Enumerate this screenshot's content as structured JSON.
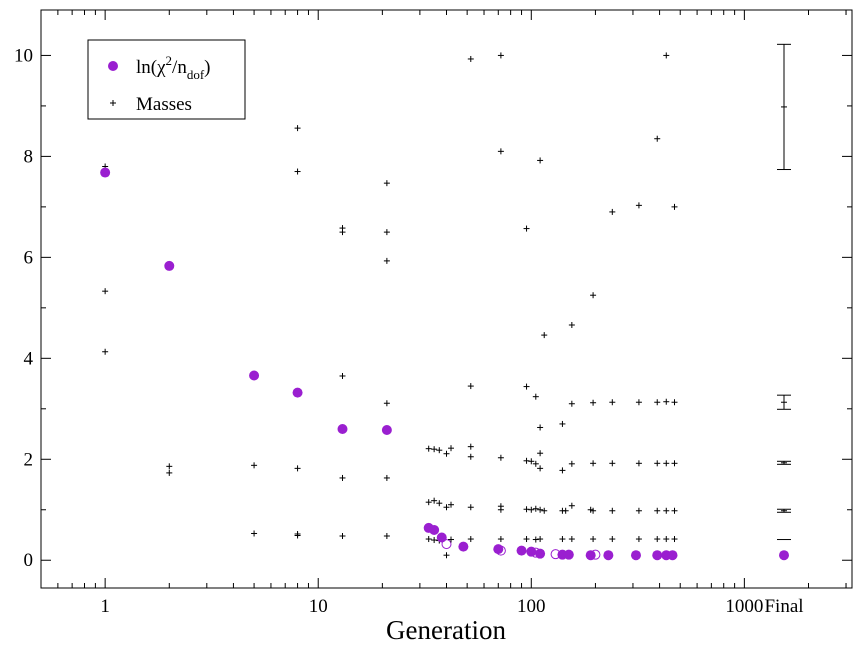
{
  "chart_data": {
    "type": "scatter",
    "xlabel": "Generation",
    "ylabel": "",
    "xscale": "log",
    "xlim": [
      0.5,
      3200
    ],
    "ylim": [
      -0.55,
      10.9
    ],
    "x_ticks": [
      "1",
      "10",
      "100",
      "1000"
    ],
    "x_extra_label": "Final",
    "y_ticks": [
      "0",
      "2",
      "4",
      "6",
      "8",
      "10"
    ],
    "legend": {
      "placement": "top-left",
      "entries": [
        "ln(χ²/n_dof)",
        "Masses"
      ]
    },
    "colors": {
      "chi": "#9a1fd0",
      "masses": "#000000"
    },
    "series": [
      {
        "name": "ln(χ²/n_dof)",
        "marker": "filled-circle",
        "points": [
          [
            1,
            7.68
          ],
          [
            2,
            5.83
          ],
          [
            5,
            3.66
          ],
          [
            8,
            3.32
          ],
          [
            13,
            2.6
          ],
          [
            21,
            2.58
          ],
          [
            33,
            0.64
          ],
          [
            35,
            0.6
          ],
          [
            38,
            0.45
          ],
          [
            48,
            0.27
          ],
          [
            70,
            0.22
          ],
          [
            90,
            0.19
          ],
          [
            100,
            0.17
          ],
          [
            110,
            0.13
          ],
          [
            140,
            0.11
          ],
          [
            150,
            0.11
          ],
          [
            190,
            0.1
          ],
          [
            230,
            0.1
          ],
          [
            310,
            0.1
          ],
          [
            390,
            0.1
          ],
          [
            430,
            0.1
          ],
          [
            460,
            0.1
          ]
        ]
      },
      {
        "name": "ln(χ²/n_dof) (open)",
        "marker": "open-circle",
        "points": [
          [
            40,
            0.32
          ],
          [
            72,
            0.19
          ],
          [
            105,
            0.15
          ],
          [
            130,
            0.12
          ],
          [
            200,
            0.11
          ]
        ]
      },
      {
        "name": "Masses",
        "marker": "plus",
        "points": [
          [
            1,
            7.8
          ],
          [
            1,
            5.33
          ],
          [
            1,
            4.13
          ],
          [
            2,
            1.86
          ],
          [
            2,
            1.73
          ],
          [
            5,
            1.88
          ],
          [
            5,
            0.53
          ],
          [
            8,
            8.56
          ],
          [
            8,
            7.7
          ],
          [
            8,
            1.82
          ],
          [
            8,
            0.52
          ],
          [
            8,
            0.49
          ],
          [
            13,
            6.58
          ],
          [
            13,
            6.5
          ],
          [
            13,
            3.65
          ],
          [
            13,
            1.63
          ],
          [
            13,
            0.48
          ],
          [
            21,
            7.47
          ],
          [
            21,
            6.5
          ],
          [
            21,
            5.93
          ],
          [
            21,
            3.11
          ],
          [
            21,
            1.63
          ],
          [
            21,
            0.48
          ],
          [
            33,
            2.21
          ],
          [
            33,
            1.15
          ],
          [
            33,
            0.42
          ],
          [
            35,
            2.2
          ],
          [
            35,
            1.18
          ],
          [
            35,
            0.4
          ],
          [
            37,
            2.18
          ],
          [
            37,
            1.13
          ],
          [
            37,
            0.39
          ],
          [
            40,
            2.11
          ],
          [
            40,
            1.05
          ],
          [
            40,
            0.1
          ],
          [
            42,
            2.22
          ],
          [
            42,
            1.1
          ],
          [
            42,
            0.41
          ],
          [
            52,
            9.93
          ],
          [
            52,
            3.45
          ],
          [
            52,
            2.25
          ],
          [
            52,
            2.05
          ],
          [
            52,
            1.05
          ],
          [
            52,
            0.42
          ],
          [
            72,
            10.0
          ],
          [
            72,
            8.1
          ],
          [
            72,
            2.03
          ],
          [
            72,
            1.07
          ],
          [
            72,
            1.0
          ],
          [
            72,
            0.42
          ],
          [
            95,
            6.57
          ],
          [
            95,
            3.44
          ],
          [
            95,
            1.97
          ],
          [
            95,
            1.01
          ],
          [
            95,
            0.42
          ],
          [
            100,
            1.96
          ],
          [
            100,
            1.0
          ],
          [
            105,
            3.24
          ],
          [
            105,
            1.91
          ],
          [
            105,
            1.02
          ],
          [
            105,
            0.41
          ],
          [
            110,
            7.92
          ],
          [
            110,
            2.63
          ],
          [
            110,
            2.12
          ],
          [
            110,
            1.82
          ],
          [
            110,
            1.0
          ],
          [
            110,
            0.42
          ],
          [
            115,
            4.46
          ],
          [
            115,
            0.98
          ],
          [
            140,
            2.7
          ],
          [
            140,
            1.78
          ],
          [
            140,
            0.98
          ],
          [
            140,
            0.42
          ],
          [
            145,
            0.98
          ],
          [
            155,
            4.66
          ],
          [
            155,
            3.1
          ],
          [
            155,
            1.91
          ],
          [
            155,
            1.08
          ],
          [
            155,
            0.42
          ],
          [
            195,
            5.25
          ],
          [
            195,
            3.12
          ],
          [
            195,
            1.92
          ],
          [
            195,
            0.98
          ],
          [
            195,
            0.42
          ],
          [
            190,
            1.0
          ],
          [
            240,
            6.9
          ],
          [
            240,
            3.13
          ],
          [
            240,
            1.92
          ],
          [
            240,
            0.98
          ],
          [
            240,
            0.42
          ],
          [
            320,
            7.03
          ],
          [
            320,
            3.13
          ],
          [
            320,
            1.92
          ],
          [
            320,
            0.98
          ],
          [
            320,
            0.42
          ],
          [
            390,
            8.35
          ],
          [
            390,
            3.13
          ],
          [
            390,
            1.92
          ],
          [
            390,
            0.98
          ],
          [
            390,
            0.42
          ],
          [
            430,
            10.0
          ],
          [
            430,
            3.14
          ],
          [
            430,
            1.92
          ],
          [
            430,
            0.98
          ],
          [
            430,
            0.42
          ],
          [
            470,
            7.0
          ],
          [
            470,
            3.13
          ],
          [
            470,
            1.92
          ],
          [
            470,
            0.98
          ],
          [
            470,
            0.42
          ]
        ]
      },
      {
        "name": "Final masses",
        "marker": "error-bar",
        "x": "Final",
        "points": [
          {
            "y": 8.98,
            "err": 1.24
          },
          {
            "y": 3.13,
            "err": 0.14
          },
          {
            "y": 1.93,
            "err": 0.03
          },
          {
            "y": 0.98,
            "err": 0.03
          },
          {
            "y": 0.41,
            "err": 0.0
          }
        ]
      },
      {
        "name": "Final ln(χ²/n_dof)",
        "marker": "filled-circle",
        "x": "Final",
        "points": [
          {
            "y": 0.1
          }
        ]
      }
    ]
  }
}
